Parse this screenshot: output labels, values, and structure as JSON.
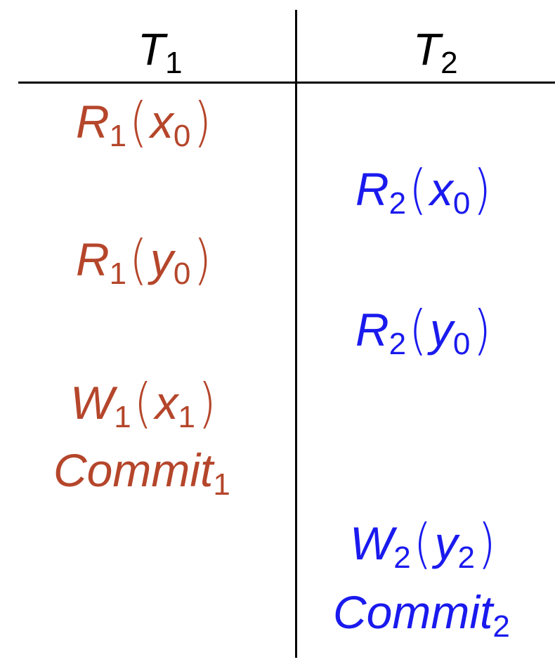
{
  "colors": {
    "t1": "#b5462b",
    "t2": "#1a1aee",
    "lines": "#000000"
  },
  "headers": {
    "t1": {
      "letter": "T",
      "sub": "1"
    },
    "t2": {
      "letter": "T",
      "sub": "2"
    }
  },
  "t1_ops": [
    {
      "op": "R",
      "op_sub": "1",
      "arg": "x",
      "arg_sub": "0"
    },
    {
      "op": "R",
      "op_sub": "1",
      "arg": "y",
      "arg_sub": "0"
    },
    {
      "op": "W",
      "op_sub": "1",
      "arg": "x",
      "arg_sub": "1"
    }
  ],
  "t1_commit": {
    "word": "Commit",
    "sub": "1"
  },
  "t2_ops": [
    {
      "op": "R",
      "op_sub": "2",
      "arg": "x",
      "arg_sub": "0"
    },
    {
      "op": "R",
      "op_sub": "2",
      "arg": "y",
      "arg_sub": "0"
    },
    {
      "op": "W",
      "op_sub": "2",
      "arg": "y",
      "arg_sub": "2"
    }
  ],
  "t2_commit": {
    "word": "Commit",
    "sub": "2"
  },
  "parens": {
    "open": "(",
    "close": ")"
  }
}
